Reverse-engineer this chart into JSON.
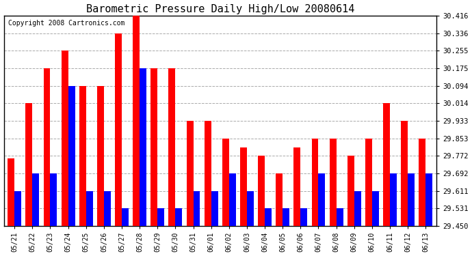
{
  "title": "Barometric Pressure Daily High/Low 20080614",
  "copyright": "Copyright 2008 Cartronics.com",
  "dates": [
    "05/21",
    "05/22",
    "05/23",
    "05/24",
    "05/25",
    "05/26",
    "05/27",
    "05/28",
    "05/29",
    "05/30",
    "05/31",
    "06/01",
    "06/02",
    "06/03",
    "06/04",
    "06/05",
    "06/06",
    "06/07",
    "06/08",
    "06/09",
    "06/10",
    "06/11",
    "06/12",
    "06/13"
  ],
  "highs": [
    29.76,
    30.014,
    30.175,
    30.255,
    30.094,
    30.094,
    30.336,
    30.416,
    30.175,
    30.175,
    29.933,
    29.933,
    29.853,
    29.812,
    29.772,
    29.692,
    29.812,
    29.853,
    29.853,
    29.772,
    29.853,
    30.014,
    29.933,
    29.853
  ],
  "lows": [
    29.611,
    29.692,
    29.692,
    30.094,
    29.611,
    29.611,
    29.531,
    30.175,
    29.531,
    29.531,
    29.611,
    29.611,
    29.692,
    29.611,
    29.531,
    29.531,
    29.531,
    29.692,
    29.531,
    29.611,
    29.611,
    29.692,
    29.692,
    29.692
  ],
  "ymin": 29.45,
  "ymax": 30.416,
  "yticks": [
    29.45,
    29.531,
    29.611,
    29.692,
    29.772,
    29.853,
    29.933,
    30.014,
    30.094,
    30.175,
    30.255,
    30.336,
    30.416
  ],
  "high_color": "#ff0000",
  "low_color": "#0000ff",
  "bg_color": "#ffffff",
  "grid_color": "#aaaaaa",
  "title_fontsize": 11,
  "copyright_fontsize": 7
}
